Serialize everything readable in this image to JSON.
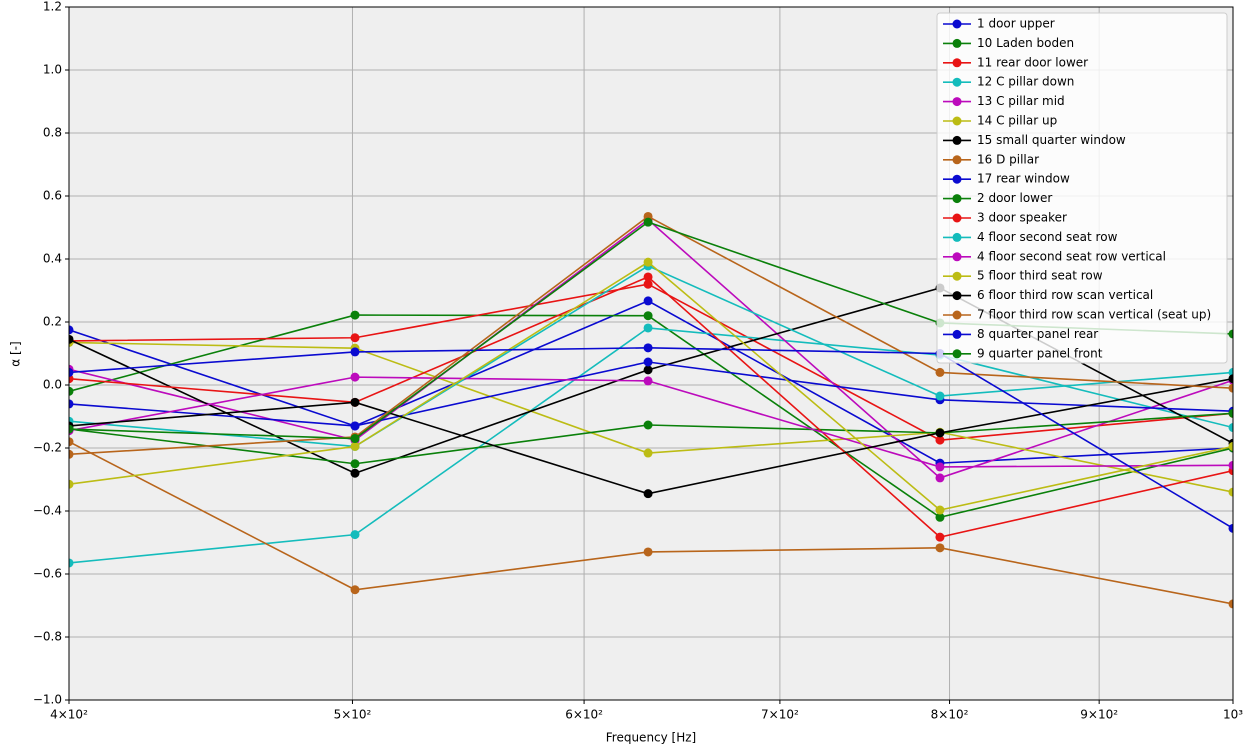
{
  "chart_data": {
    "type": "line",
    "xlabel": "Frequency [Hz]",
    "ylabel": "α [-]",
    "xscale": "log",
    "grid": true,
    "legend": "upper right",
    "x": [
      400,
      501,
      631,
      794,
      1000
    ],
    "xlim": [
      400,
      1000
    ],
    "xticks": [
      {
        "value": 400,
        "label": "4×10²"
      },
      {
        "value": 500,
        "label": "5×10²"
      },
      {
        "value": 600,
        "label": "6×10²"
      },
      {
        "value": 700,
        "label": "7×10²"
      },
      {
        "value": 800,
        "label": "8×10²"
      },
      {
        "value": 900,
        "label": "9×10²"
      },
      {
        "value": 1000,
        "label": "10³"
      }
    ],
    "ylim": [
      -1.0,
      1.2
    ],
    "yticks": [
      {
        "value": -1.0,
        "label": "−1.0"
      },
      {
        "value": -0.8,
        "label": "−0.8"
      },
      {
        "value": -0.6,
        "label": "−0.6"
      },
      {
        "value": -0.4,
        "label": "−0.4"
      },
      {
        "value": -0.2,
        "label": "−0.2"
      },
      {
        "value": 0.0,
        "label": "0.0"
      },
      0.2,
      0.4,
      0.6,
      0.8,
      {
        "value": 1.0,
        "label": "1.0"
      },
      1.2
    ],
    "series": [
      {
        "name": "1 door upper",
        "color": "#0a0ad0",
        "values": [
          0.175,
          -0.13,
          0.267,
          -0.248,
          -0.2
        ]
      },
      {
        "name": "10 Laden boden",
        "color": "#0a800a",
        "values": [
          -0.02,
          0.222,
          0.22,
          -0.42,
          -0.2
        ]
      },
      {
        "name": "11 rear door lower",
        "color": "#e81414",
        "values": [
          0.14,
          0.15,
          0.32,
          -0.175,
          -0.09
        ]
      },
      {
        "name": "12 C pillar down",
        "color": "#14bcbc",
        "values": [
          -0.565,
          -0.475,
          0.181,
          0.095,
          -0.135
        ]
      },
      {
        "name": "13 C pillar mid",
        "color": "#bc0abc",
        "values": [
          0.05,
          -0.175,
          0.525,
          -0.295,
          0.015
        ]
      },
      {
        "name": "14 C pillar up",
        "color": "#bcbc14",
        "values": [
          0.135,
          0.117,
          -0.216,
          -0.15,
          -0.34
        ]
      },
      {
        "name": "15 small quarter window",
        "color": "#000000",
        "values": [
          0.145,
          -0.28,
          0.048,
          0.308,
          -0.185
        ]
      },
      {
        "name": "16 D pillar",
        "color": "#b8651b",
        "values": [
          -0.18,
          -0.65,
          -0.53,
          -0.517,
          -0.695
        ]
      },
      {
        "name": "17 rear window",
        "color": "#0a0ad0",
        "values": [
          -0.06,
          -0.13,
          0.073,
          -0.047,
          -0.083
        ]
      },
      {
        "name": "2 door lower",
        "color": "#0a800a",
        "values": [
          -0.14,
          -0.25,
          -0.127,
          -0.152,
          -0.09
        ]
      },
      {
        "name": "3 door speaker",
        "color": "#e81414",
        "values": [
          0.02,
          -0.055,
          0.343,
          -0.483,
          -0.272
        ]
      },
      {
        "name": "4 floor second seat row",
        "color": "#14bcbc",
        "values": [
          -0.115,
          -0.195,
          0.378,
          -0.035,
          0.04
        ]
      },
      {
        "name": "4 floor second seat row vertical",
        "color": "#bc0abc",
        "values": [
          -0.145,
          0.025,
          0.013,
          -0.26,
          -0.255
        ]
      },
      {
        "name": "5 floor third seat row",
        "color": "#bcbc14",
        "values": [
          -0.315,
          -0.195,
          0.39,
          -0.397,
          -0.195
        ]
      },
      {
        "name": "6 floor third row scan vertical",
        "color": "#000000",
        "values": [
          -0.13,
          -0.055,
          -0.345,
          -0.152,
          0.02
        ]
      },
      {
        "name": "7 floor third row scan vertical (seat up)",
        "color": "#b8651b",
        "values": [
          -0.22,
          -0.165,
          0.535,
          0.04,
          -0.01
        ]
      },
      {
        "name": "8 quarter panel rear",
        "color": "#0a0ad0",
        "values": [
          0.04,
          0.105,
          0.118,
          0.1,
          -0.455
        ]
      },
      {
        "name": "9 quarter panel front",
        "color": "#0a800a",
        "values": [
          -0.14,
          -0.17,
          0.517,
          0.197,
          0.162
        ]
      }
    ]
  }
}
